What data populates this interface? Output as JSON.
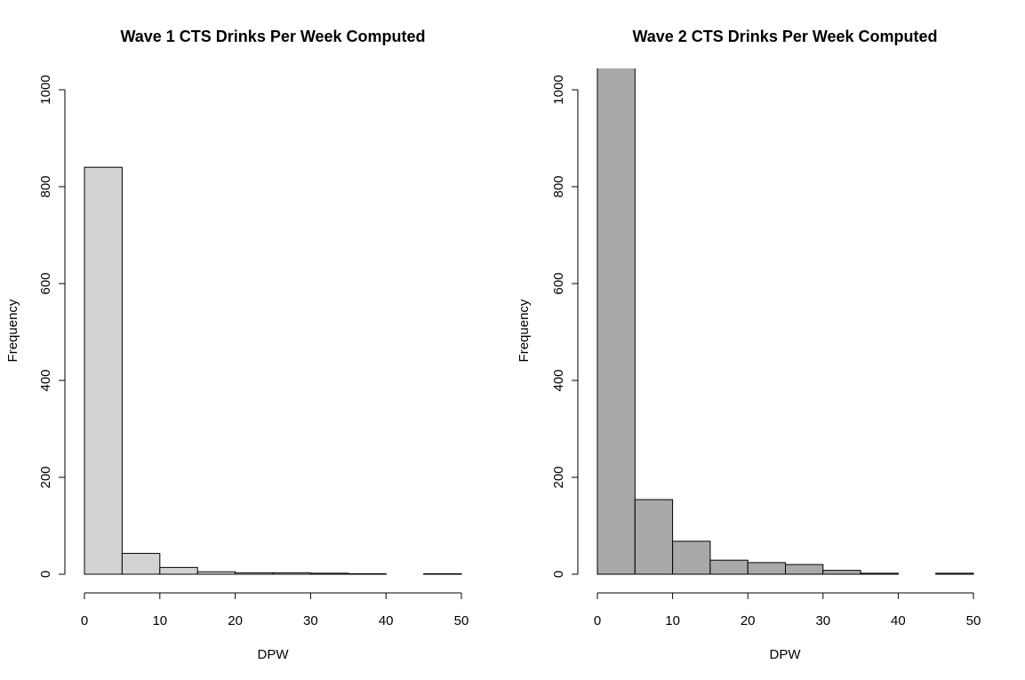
{
  "chart_data": [
    {
      "type": "bar",
      "title": "Wave 1 CTS Drinks Per Week Computed",
      "xlabel": "DPW",
      "ylabel": "Frequency",
      "bin_edges": [
        0,
        5,
        10,
        15,
        20,
        25,
        30,
        35,
        40,
        45,
        50
      ],
      "values": [
        840,
        43,
        14,
        5,
        3,
        3,
        2,
        1,
        0,
        1
      ],
      "xlim": [
        0,
        50
      ],
      "ylim": [
        0,
        1000
      ],
      "xticks": [
        0,
        10,
        20,
        30,
        40,
        50
      ],
      "yticks": [
        0,
        200,
        400,
        600,
        800,
        1000
      ],
      "bar_color": "#d3d3d3",
      "grid": false
    },
    {
      "type": "bar",
      "title": "Wave 2 CTS Drinks Per Week Computed",
      "xlabel": "DPW",
      "ylabel": "Frequency",
      "bin_edges": [
        0,
        5,
        10,
        15,
        20,
        25,
        30,
        35,
        40,
        45,
        50
      ],
      "values": [
        1070,
        154,
        68,
        29,
        24,
        20,
        8,
        2,
        0,
        2
      ],
      "xlim": [
        0,
        50
      ],
      "ylim": [
        0,
        1000
      ],
      "xticks": [
        0,
        10,
        20,
        30,
        40,
        50
      ],
      "yticks": [
        0,
        200,
        400,
        600,
        800,
        1000
      ],
      "bar_color": "#a9a9a9",
      "grid": false
    }
  ]
}
